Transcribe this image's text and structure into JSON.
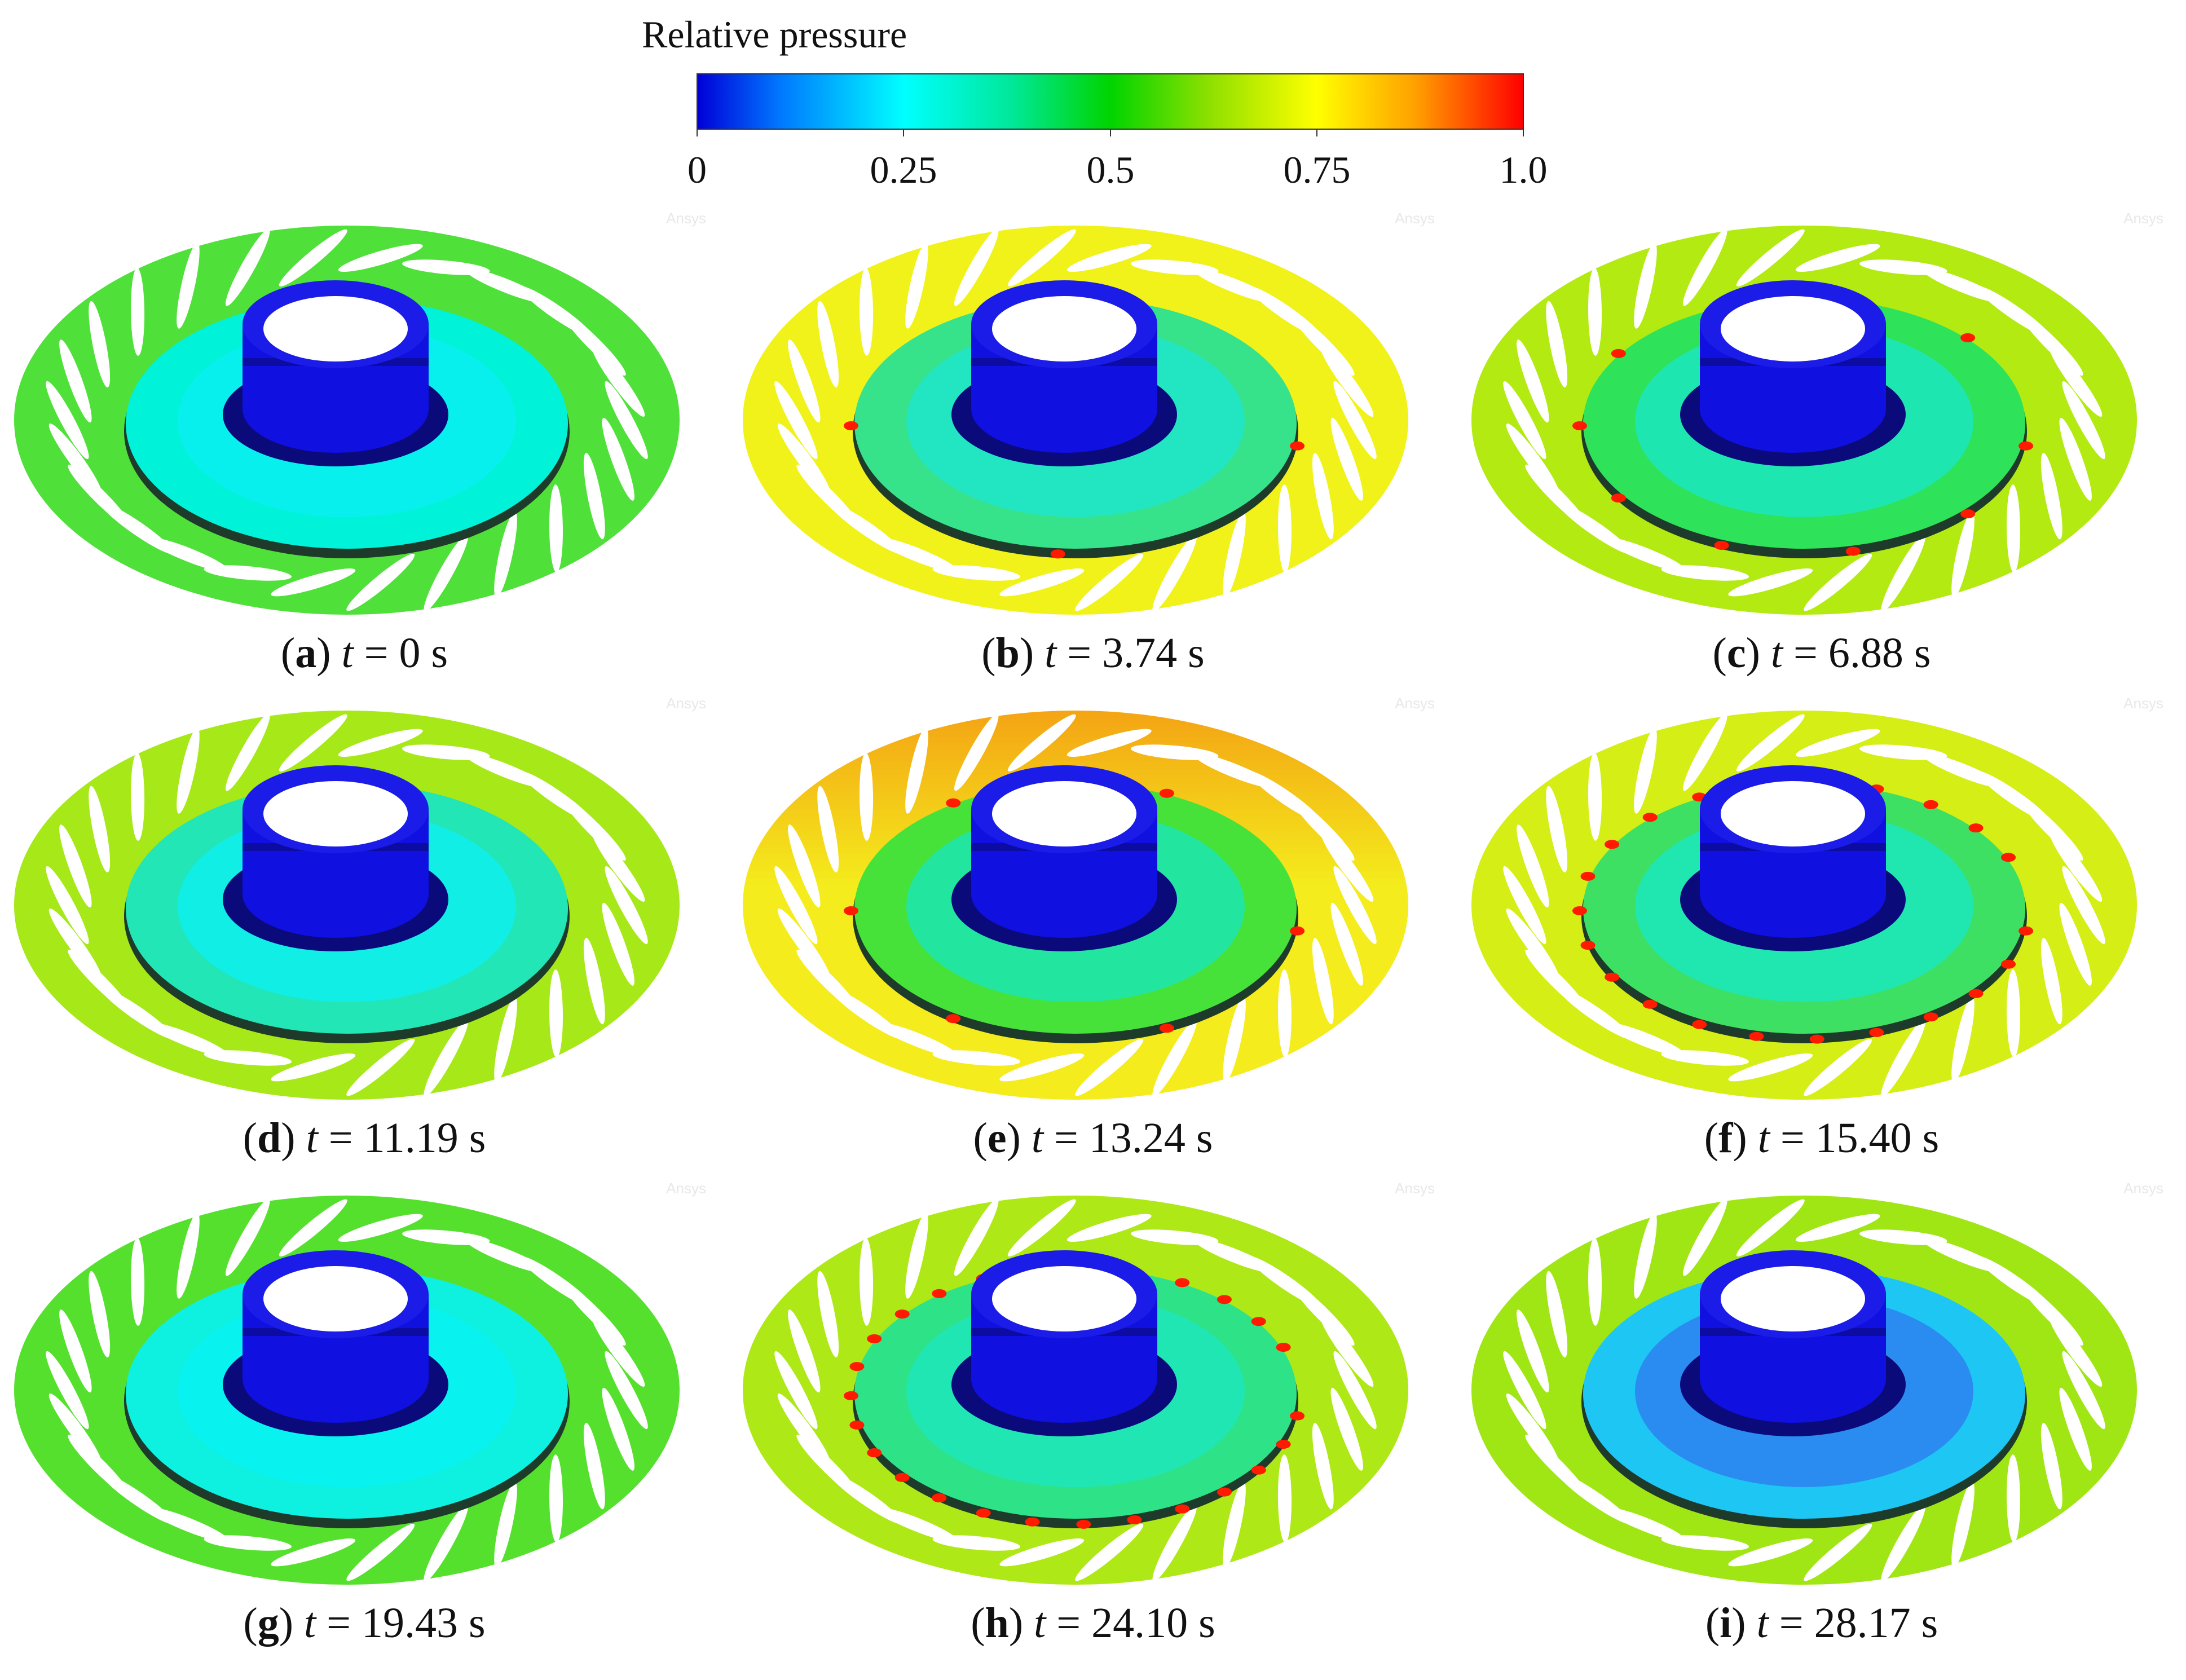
{
  "legend": {
    "title": "Relative pressure",
    "ticks": [
      "0",
      "0.25",
      "0.5",
      "0.75",
      "1.0"
    ],
    "tick_values": [
      0,
      0.25,
      0.5,
      0.75,
      1.0
    ],
    "colormap": [
      {
        "value": 0.0,
        "color": "#0000d8"
      },
      {
        "value": 0.1,
        "color": "#0078ff"
      },
      {
        "value": 0.25,
        "color": "#00ffff"
      },
      {
        "value": 0.38,
        "color": "#00e89a"
      },
      {
        "value": 0.5,
        "color": "#00d400"
      },
      {
        "value": 0.62,
        "color": "#8ee000"
      },
      {
        "value": 0.75,
        "color": "#ffff00"
      },
      {
        "value": 0.87,
        "color": "#ffa000"
      },
      {
        "value": 1.0,
        "color": "#ff0000"
      }
    ]
  },
  "watermark": "Ansys",
  "panels": [
    {
      "label": "a",
      "time": "t = 0 s",
      "prefix": "t",
      "value": "= 0 s",
      "colors": {
        "outer": "#4fe03a",
        "outer_top": "#4fe03a",
        "mid": "#00f2d8",
        "inner": "#08f0ee",
        "hub": "#1010e0",
        "hub_dark": "#0a0a7a",
        "shadow": "#1e3a2a"
      },
      "hot_spots": 0
    },
    {
      "label": "b",
      "time": "t = 3.74 s",
      "prefix": "t",
      "value": "= 3.74 s",
      "colors": {
        "outer": "#f0f21a",
        "outer_top": "#f0f21a",
        "mid": "#36e28a",
        "inner": "#22e6c2",
        "hub": "#1010e0",
        "hub_dark": "#0a0a7a",
        "shadow": "#1e3a2a"
      },
      "hot_spots": 4
    },
    {
      "label": "c",
      "time": "t = 6.88 s",
      "prefix": "t",
      "value": "= 6.88 s",
      "colors": {
        "outer": "#b2ea12",
        "outer_top": "#b2ea12",
        "mid": "#2ee25a",
        "inner": "#1ee6b0",
        "hub": "#1010e0",
        "hub_dark": "#0a0a7a",
        "shadow": "#1e3a2a"
      },
      "hot_spots": 10
    },
    {
      "label": "d",
      "time": "t = 11.19 s",
      "prefix": "t",
      "value": "= 11.19 s",
      "colors": {
        "outer": "#a6e818",
        "outer_top": "#a6e818",
        "mid": "#22e6b6",
        "inner": "#10eee6",
        "hub": "#1010e0",
        "hub_dark": "#0a0a7a",
        "shadow": "#1e3a2a"
      },
      "hot_spots": 0
    },
    {
      "label": "e",
      "time": "t = 13.24 s",
      "prefix": "t",
      "value": "= 13.24 s",
      "colors": {
        "outer": "#f4ec1c",
        "outer_top": "#f4a414",
        "mid": "#46e23a",
        "inner": "#22e6a0",
        "hub": "#1010e0",
        "hub_dark": "#0a0a7a",
        "shadow": "#1e3a2a"
      },
      "hot_spots": 6
    },
    {
      "label": "f",
      "time": "t = 15.40 s",
      "prefix": "t",
      "value": "= 15.40 s",
      "colors": {
        "outer": "#d4ee16",
        "outer_top": "#d4ee16",
        "mid": "#3ee064",
        "inner": "#20e6b0",
        "hub": "#1010e0",
        "hub_dark": "#0a0a7a",
        "shadow": "#1e3a2a"
      },
      "hot_spots": 22
    },
    {
      "label": "g",
      "time": "t = 19.43 s",
      "prefix": "t",
      "value": "= 19.43 s",
      "colors": {
        "outer": "#56e02e",
        "outer_top": "#56e02e",
        "mid": "#0ef0e0",
        "inner": "#08f2f0",
        "hub": "#1010e0",
        "hub_dark": "#0a0a7a",
        "shadow": "#1e3a2a"
      },
      "hot_spots": 0
    },
    {
      "label": "h",
      "time": "t = 24.10 s",
      "prefix": "t",
      "value": "= 24.10 s",
      "colors": {
        "outer": "#aee816",
        "outer_top": "#aee816",
        "mid": "#2ee288",
        "inner": "#20e6b4",
        "hub": "#1010e0",
        "hub_dark": "#0a0a7a",
        "shadow": "#1e3a2a"
      },
      "hot_spots": 26
    },
    {
      "label": "i",
      "time": "t = 28.17 s",
      "prefix": "t",
      "value": "= 28.17 s",
      "colors": {
        "outer": "#a0e614",
        "outer_top": "#a0e614",
        "mid": "#1ec6f4",
        "inner": "#2a8cf0",
        "hub": "#1010e0",
        "hub_dark": "#0a0a7a",
        "shadow": "#1e3a2a"
      },
      "hot_spots": 0
    }
  ]
}
